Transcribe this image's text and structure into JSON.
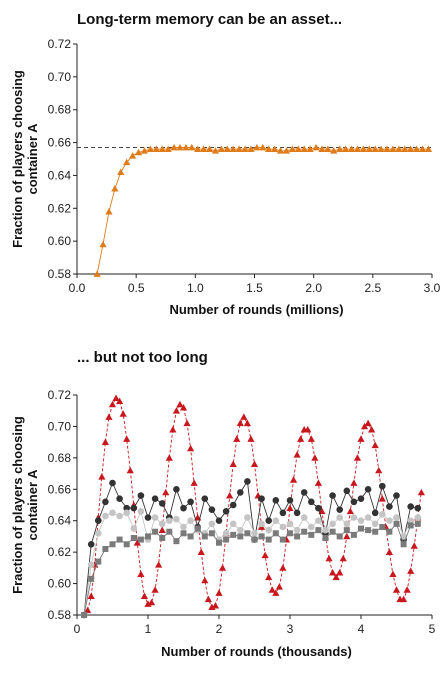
{
  "chart_data": [
    {
      "type": "line",
      "title": "Long-term memory can be an asset...",
      "xlabel": "Number of rounds (millions)",
      "ylabel": [
        "Fraction of players choosing",
        "container A"
      ],
      "xlim": [
        0,
        3
      ],
      "ylim": [
        0.58,
        0.72
      ],
      "xticks": [
        "0.0",
        "0.5",
        "1.0",
        "1.5",
        "2.0",
        "2.5",
        "3.0"
      ],
      "yticks": [
        "0.58",
        "0.60",
        "0.62",
        "0.64",
        "0.66",
        "0.68",
        "0.70",
        "0.72"
      ],
      "reference_line": 0.657,
      "series_color": "#e07b1a",
      "marker": "triangle",
      "series": [
        {
          "x": [
            0.17,
            0.22,
            0.27,
            0.32,
            0.37,
            0.42,
            0.47,
            0.52,
            0.57,
            0.62,
            0.67,
            0.72,
            0.77,
            0.82,
            0.87,
            0.92,
            0.97,
            1.02,
            1.07,
            1.12,
            1.17,
            1.22,
            1.27,
            1.32,
            1.37,
            1.42,
            1.47,
            1.52,
            1.57,
            1.62,
            1.67,
            1.72,
            1.77,
            1.82,
            1.87,
            1.92,
            1.97,
            2.02,
            2.07,
            2.12,
            2.17,
            2.22,
            2.27,
            2.32,
            2.37,
            2.42,
            2.47,
            2.52,
            2.57,
            2.62,
            2.67,
            2.72,
            2.77,
            2.82,
            2.87,
            2.92,
            2.97
          ],
          "y": [
            0.58,
            0.598,
            0.618,
            0.632,
            0.642,
            0.648,
            0.652,
            0.654,
            0.655,
            0.656,
            0.656,
            0.656,
            0.656,
            0.657,
            0.657,
            0.657,
            0.657,
            0.656,
            0.656,
            0.656,
            0.655,
            0.656,
            0.656,
            0.656,
            0.656,
            0.656,
            0.656,
            0.657,
            0.657,
            0.656,
            0.656,
            0.655,
            0.655,
            0.656,
            0.656,
            0.656,
            0.656,
            0.657,
            0.656,
            0.656,
            0.655,
            0.656,
            0.656,
            0.656,
            0.656,
            0.656,
            0.656,
            0.656,
            0.656,
            0.656,
            0.656,
            0.656,
            0.656,
            0.656,
            0.656,
            0.656,
            0.656
          ]
        }
      ]
    },
    {
      "type": "line",
      "title": "... but not too long",
      "xlabel": "Number of rounds (thousands)",
      "ylabel": [
        "Fraction of players choosing",
        "container A"
      ],
      "xlim": [
        0,
        5
      ],
      "ylim": [
        0.58,
        0.72
      ],
      "xticks": [
        "0",
        "1",
        "2",
        "3",
        "4",
        "5"
      ],
      "yticks": [
        "0.58",
        "0.60",
        "0.62",
        "0.64",
        "0.66",
        "0.68",
        "0.70",
        "0.72"
      ],
      "series": [
        {
          "color": "#c8181e",
          "marker": "triangle",
          "style": "dashed",
          "x": [
            0.15,
            0.2,
            0.25,
            0.3,
            0.35,
            0.4,
            0.45,
            0.5,
            0.55,
            0.6,
            0.65,
            0.7,
            0.75,
            0.8,
            0.85,
            0.9,
            0.95,
            1.0,
            1.05,
            1.1,
            1.15,
            1.2,
            1.25,
            1.3,
            1.35,
            1.4,
            1.45,
            1.5,
            1.55,
            1.6,
            1.65,
            1.7,
            1.75,
            1.8,
            1.85,
            1.9,
            1.95,
            2.0,
            2.05,
            2.1,
            2.15,
            2.2,
            2.25,
            2.3,
            2.35,
            2.4,
            2.45,
            2.5,
            2.55,
            2.6,
            2.65,
            2.7,
            2.75,
            2.8,
            2.85,
            2.9,
            2.95,
            3.0,
            3.05,
            3.1,
            3.15,
            3.2,
            3.25,
            3.3,
            3.35,
            3.4,
            3.45,
            3.5,
            3.55,
            3.6,
            3.65,
            3.7,
            3.75,
            3.8,
            3.85,
            3.9,
            3.95,
            4.0,
            4.05,
            4.1,
            4.15,
            4.2,
            4.25,
            4.3,
            4.35,
            4.4,
            4.45,
            4.5,
            4.55,
            4.6,
            4.65,
            4.7,
            4.75,
            4.8,
            4.85
          ],
          "y": [
            0.583,
            0.592,
            0.612,
            0.642,
            0.668,
            0.69,
            0.706,
            0.714,
            0.718,
            0.716,
            0.708,
            0.692,
            0.672,
            0.65,
            0.626,
            0.606,
            0.592,
            0.587,
            0.588,
            0.596,
            0.612,
            0.634,
            0.658,
            0.68,
            0.698,
            0.71,
            0.714,
            0.712,
            0.702,
            0.686,
            0.664,
            0.642,
            0.62,
            0.602,
            0.59,
            0.585,
            0.586,
            0.594,
            0.61,
            0.632,
            0.656,
            0.676,
            0.692,
            0.702,
            0.706,
            0.702,
            0.692,
            0.676,
            0.656,
            0.636,
            0.618,
            0.604,
            0.596,
            0.594,
            0.598,
            0.61,
            0.628,
            0.648,
            0.666,
            0.682,
            0.692,
            0.698,
            0.698,
            0.692,
            0.68,
            0.664,
            0.646,
            0.63,
            0.616,
            0.607,
            0.604,
            0.607,
            0.616,
            0.63,
            0.646,
            0.664,
            0.68,
            0.692,
            0.7,
            0.702,
            0.698,
            0.688,
            0.672,
            0.654,
            0.636,
            0.62,
            0.606,
            0.596,
            0.59,
            0.59,
            0.596,
            0.608,
            0.624,
            0.642,
            0.658
          ]
        },
        {
          "color": "#333333",
          "marker": "circle",
          "style": "solid",
          "x": [
            0.1,
            0.2,
            0.3,
            0.4,
            0.5,
            0.6,
            0.7,
            0.8,
            0.9,
            1.0,
            1.1,
            1.2,
            1.3,
            1.4,
            1.5,
            1.6,
            1.7,
            1.8,
            1.9,
            2.0,
            2.1,
            2.2,
            2.3,
            2.4,
            2.5,
            2.6,
            2.7,
            2.8,
            2.9,
            3.0,
            3.1,
            3.2,
            3.3,
            3.4,
            3.5,
            3.6,
            3.7,
            3.8,
            3.9,
            4.0,
            4.1,
            4.2,
            4.3,
            4.4,
            4.5,
            4.6,
            4.7,
            4.8
          ],
          "y": [
            0.58,
            0.625,
            0.64,
            0.652,
            0.664,
            0.654,
            0.648,
            0.648,
            0.656,
            0.642,
            0.654,
            0.651,
            0.642,
            0.66,
            0.648,
            0.652,
            0.636,
            0.654,
            0.647,
            0.64,
            0.646,
            0.65,
            0.658,
            0.665,
            0.628,
            0.654,
            0.64,
            0.653,
            0.645,
            0.653,
            0.645,
            0.658,
            0.652,
            0.648,
            0.632,
            0.656,
            0.647,
            0.659,
            0.652,
            0.654,
            0.66,
            0.645,
            0.662,
            0.649,
            0.656,
            0.628,
            0.649,
            0.648
          ]
        },
        {
          "color": "#c4c4c4",
          "marker": "circle",
          "style": "solid",
          "x": [
            0.1,
            0.2,
            0.3,
            0.4,
            0.5,
            0.6,
            0.7,
            0.8,
            0.9,
            1.0,
            1.1,
            1.2,
            1.3,
            1.4,
            1.5,
            1.6,
            1.7,
            1.8,
            1.9,
            2.0,
            2.1,
            2.2,
            2.3,
            2.4,
            2.5,
            2.6,
            2.7,
            2.8,
            2.9,
            3.0,
            3.1,
            3.2,
            3.3,
            3.4,
            3.5,
            3.6,
            3.7,
            3.8,
            3.9,
            4.0,
            4.1,
            4.2,
            4.3,
            4.4,
            4.5,
            4.6,
            4.7,
            4.8
          ],
          "y": [
            0.58,
            0.612,
            0.632,
            0.643,
            0.645,
            0.643,
            0.645,
            0.635,
            0.646,
            0.628,
            0.642,
            0.638,
            0.64,
            0.641,
            0.636,
            0.64,
            0.634,
            0.632,
            0.638,
            0.628,
            0.632,
            0.638,
            0.634,
            0.642,
            0.632,
            0.638,
            0.634,
            0.64,
            0.636,
            0.638,
            0.634,
            0.642,
            0.636,
            0.64,
            0.634,
            0.638,
            0.642,
            0.638,
            0.642,
            0.64,
            0.642,
            0.638,
            0.644,
            0.64,
            0.642,
            0.63,
            0.64,
            0.642
          ]
        },
        {
          "color": "#7a7a7a",
          "marker": "square",
          "style": "solid",
          "x": [
            0.1,
            0.2,
            0.3,
            0.4,
            0.5,
            0.6,
            0.7,
            0.8,
            0.9,
            1.0,
            1.1,
            1.2,
            1.3,
            1.4,
            1.5,
            1.6,
            1.7,
            1.8,
            1.9,
            2.0,
            2.1,
            2.2,
            2.3,
            2.4,
            2.5,
            2.6,
            2.7,
            2.8,
            2.9,
            3.0,
            3.1,
            3.2,
            3.3,
            3.4,
            3.5,
            3.6,
            3.7,
            3.8,
            3.9,
            4.0,
            4.1,
            4.2,
            4.3,
            4.4,
            4.5,
            4.6,
            4.7,
            4.8
          ],
          "y": [
            0.58,
            0.603,
            0.614,
            0.622,
            0.625,
            0.628,
            0.625,
            0.629,
            0.628,
            0.63,
            0.633,
            0.629,
            0.633,
            0.627,
            0.632,
            0.63,
            0.635,
            0.63,
            0.632,
            0.626,
            0.628,
            0.631,
            0.63,
            0.632,
            0.628,
            0.63,
            0.628,
            0.632,
            0.628,
            0.632,
            0.63,
            0.633,
            0.631,
            0.634,
            0.629,
            0.633,
            0.63,
            0.634,
            0.631,
            0.635,
            0.634,
            0.633,
            0.636,
            0.633,
            0.638,
            0.625,
            0.637,
            0.638
          ]
        }
      ]
    }
  ]
}
